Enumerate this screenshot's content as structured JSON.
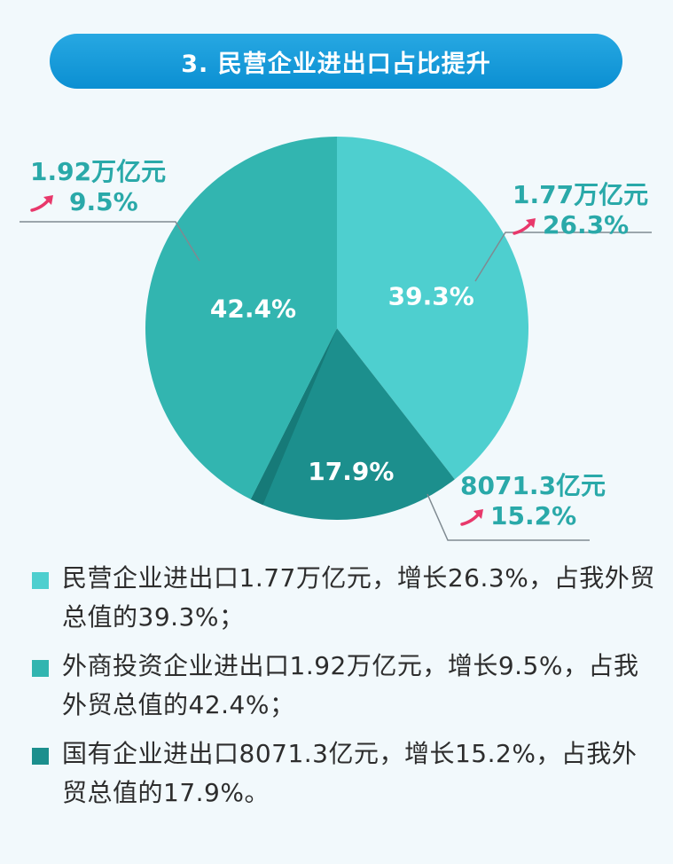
{
  "title": "3. 民营企业进出口占比提升",
  "colors": {
    "private": "#4ecfcf",
    "foreign": "#32b5b0",
    "state": "#1c8f8d",
    "state_sliver": "#167a78",
    "arrow": "#e8386b"
  },
  "chart_data": {
    "type": "pie",
    "slices": [
      {
        "key": "private",
        "value": 39.3,
        "label": "39.3%",
        "amount": "1.77万亿元",
        "growth": "26.3%"
      },
      {
        "key": "state",
        "value": 17.9,
        "label": "17.9%",
        "amount": "8071.3亿元",
        "growth": "15.2%"
      },
      {
        "key": "foreign",
        "value": 42.4,
        "label": "42.4%",
        "amount": "1.92万亿元",
        "growth": "9.5%"
      }
    ]
  },
  "legend": [
    {
      "key": "private",
      "text": "民营企业进出口1.77万亿元，增长26.3%，占我外贸总值的39.3%；"
    },
    {
      "key": "foreign",
      "text": "外商投资企业进出口1.92万亿元，增长9.5%，占我外贸总值的42.4%；"
    },
    {
      "key": "state",
      "text": "国有企业进出口8071.3亿元，增长15.2%，占我外贸总值的17.9%。"
    }
  ]
}
